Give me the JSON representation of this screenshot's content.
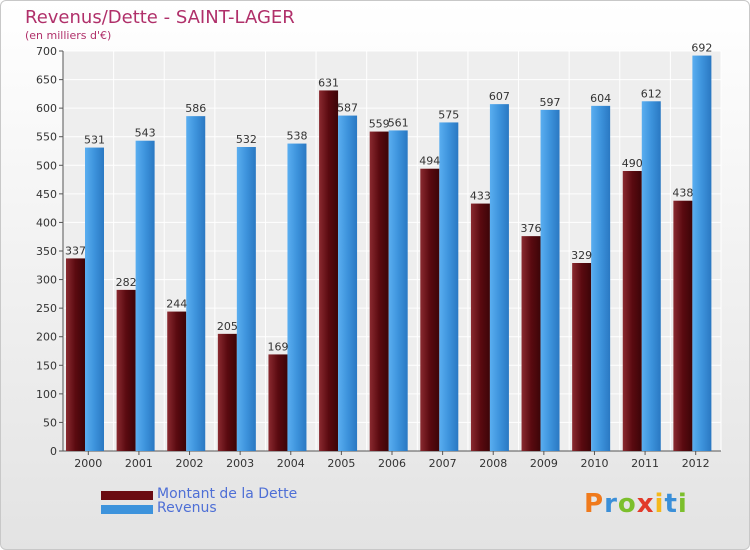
{
  "header": {
    "title": "Revenus/Dette - SAINT-LAGER",
    "subtitle": "(en milliers d'€)"
  },
  "legend": [
    {
      "label": "Montant de la Dette",
      "color": "#6b0c12"
    },
    {
      "label": "Revenus",
      "color": "#3d93dc"
    }
  ],
  "logo": {
    "letters": [
      "P",
      "r",
      "o",
      "x",
      "i",
      "t",
      "i"
    ],
    "colors": [
      "#f07a1c",
      "#3a8fd8",
      "#7cbf2c",
      "#e23a2a",
      "#f5b81a",
      "#3a8fd8",
      "#7cbf2c"
    ]
  },
  "chart_data": {
    "type": "bar",
    "title": "Revenus/Dette - SAINT-LAGER",
    "subtitle": "(en milliers d'€)",
    "categories": [
      "2000",
      "2001",
      "2002",
      "2003",
      "2004",
      "2005",
      "2006",
      "2007",
      "2008",
      "2009",
      "2010",
      "2011",
      "2012"
    ],
    "series": [
      {
        "name": "Montant de la Dette",
        "color": "#6b0c12",
        "values": [
          337,
          282,
          244,
          205,
          169,
          631,
          559,
          494,
          433,
          376,
          329,
          490,
          438
        ]
      },
      {
        "name": "Revenus",
        "color": "#3d93dc",
        "values": [
          531,
          543,
          586,
          532,
          538,
          587,
          561,
          575,
          607,
          597,
          604,
          612,
          692
        ]
      }
    ],
    "ylim": [
      0,
      700
    ],
    "ytick_step": 50,
    "grid": true,
    "legend_position": "bottom-left",
    "data_labels": true
  }
}
